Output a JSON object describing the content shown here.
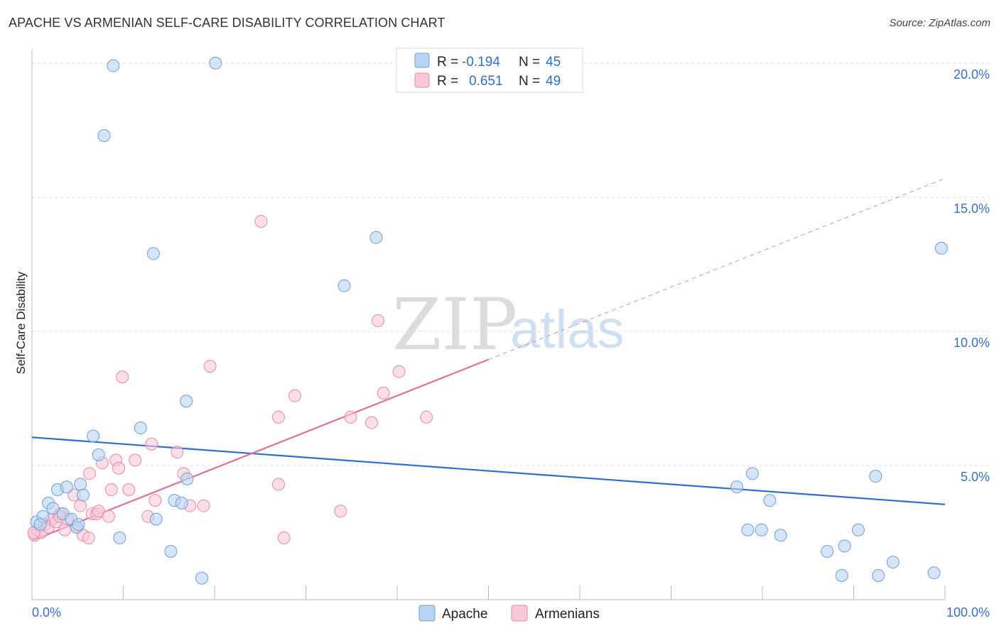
{
  "title": "APACHE VS ARMENIAN SELF-CARE DISABILITY CORRELATION CHART",
  "source": "Source: ZipAtlas.com",
  "watermark": {
    "zip": "ZIP",
    "atlas": "atlas"
  },
  "colors": {
    "apache_fill": "#b9d3f1",
    "apache_stroke": "#6f9fd9",
    "apache_line": "#2e6fc9",
    "armenian_fill": "#f9c8d7",
    "armenian_stroke": "#e98aa8",
    "armenian_line": "#e0709a",
    "grid": "#dcdcdc",
    "tick_label": "#3a6fc4"
  },
  "legend": {
    "rows": [
      {
        "r_label": "R =",
        "r_value": "-0.194",
        "n_label": "N =",
        "n_value": "45"
      },
      {
        "r_label": "R =",
        "r_value": "0.651",
        "n_label": "N =",
        "n_value": "49"
      }
    ]
  },
  "bottom_legend": [
    "Apache",
    "Armenians"
  ],
  "chart_data": {
    "type": "scatter",
    "title": "APACHE VS ARMENIAN SELF-CARE DISABILITY CORRELATION CHART",
    "xlabel": "",
    "ylabel": "Self-Care Disability",
    "xlim": [
      0,
      100
    ],
    "ylim": [
      0,
      20.5
    ],
    "x_tick_labels": [
      "0.0%",
      "100.0%"
    ],
    "y_ticks": [
      5,
      10,
      15,
      20
    ],
    "y_tick_labels": [
      "5.0%",
      "10.0%",
      "15.0%",
      "20.0%"
    ],
    "grid": true,
    "legend_position": "top-center",
    "series": [
      {
        "name": "Apache",
        "r": -0.194,
        "n": 45,
        "trend": {
          "x": [
            0,
            100
          ],
          "y": [
            6.05,
            3.55
          ],
          "dashed_from": null
        },
        "points": [
          [
            0.5,
            2.9
          ],
          [
            1.2,
            3.1
          ],
          [
            1.8,
            3.6
          ],
          [
            2.3,
            3.4
          ],
          [
            2.8,
            4.1
          ],
          [
            3.4,
            3.2
          ],
          [
            3.8,
            4.2
          ],
          [
            4.3,
            3.0
          ],
          [
            4.9,
            2.7
          ],
          [
            5.6,
            3.9
          ],
          [
            5.3,
            4.3
          ],
          [
            6.7,
            6.1
          ],
          [
            7.3,
            5.4
          ],
          [
            7.9,
            17.3
          ],
          [
            8.9,
            19.9
          ],
          [
            9.6,
            2.3
          ],
          [
            11.9,
            6.4
          ],
          [
            13.3,
            12.9
          ],
          [
            13.6,
            3.0
          ],
          [
            15.2,
            1.8
          ],
          [
            15.6,
            3.7
          ],
          [
            16.4,
            3.6
          ],
          [
            16.9,
            7.4
          ],
          [
            17.0,
            4.5
          ],
          [
            18.6,
            0.8
          ],
          [
            20.1,
            20.0
          ],
          [
            34.2,
            11.7
          ],
          [
            37.7,
            13.5
          ],
          [
            77.2,
            4.2
          ],
          [
            78.4,
            2.6
          ],
          [
            78.9,
            4.7
          ],
          [
            79.9,
            2.6
          ],
          [
            80.8,
            3.7
          ],
          [
            82.0,
            2.4
          ],
          [
            87.1,
            1.8
          ],
          [
            88.7,
            0.9
          ],
          [
            89.0,
            2.0
          ],
          [
            90.5,
            2.6
          ],
          [
            92.4,
            4.6
          ],
          [
            92.7,
            0.9
          ],
          [
            94.3,
            1.4
          ],
          [
            98.8,
            1.0
          ],
          [
            99.6,
            13.1
          ],
          [
            0.9,
            2.8
          ],
          [
            5.1,
            2.8
          ]
        ]
      },
      {
        "name": "Armenians",
        "r": 0.651,
        "n": 49,
        "trend": {
          "x": [
            0,
            100
          ],
          "y": [
            2.2,
            15.7
          ],
          "dashed_from": 50
        },
        "points": [
          [
            0.3,
            2.4
          ],
          [
            0.6,
            2.6
          ],
          [
            1.0,
            2.5
          ],
          [
            1.4,
            2.8
          ],
          [
            1.8,
            2.7
          ],
          [
            2.2,
            3.0
          ],
          [
            2.6,
            2.9
          ],
          [
            3.1,
            3.2
          ],
          [
            3.6,
            2.6
          ],
          [
            3.9,
            3.0
          ],
          [
            4.6,
            3.9
          ],
          [
            4.9,
            2.7
          ],
          [
            5.3,
            3.5
          ],
          [
            5.6,
            2.4
          ],
          [
            6.2,
            2.3
          ],
          [
            6.3,
            4.7
          ],
          [
            6.6,
            3.2
          ],
          [
            7.1,
            3.2
          ],
          [
            7.3,
            3.3
          ],
          [
            7.7,
            5.1
          ],
          [
            8.4,
            3.1
          ],
          [
            8.7,
            4.1
          ],
          [
            9.2,
            5.2
          ],
          [
            9.5,
            4.9
          ],
          [
            9.9,
            8.3
          ],
          [
            10.6,
            4.1
          ],
          [
            11.3,
            5.2
          ],
          [
            12.7,
            3.1
          ],
          [
            13.1,
            5.8
          ],
          [
            13.5,
            3.7
          ],
          [
            15.9,
            5.5
          ],
          [
            16.6,
            4.7
          ],
          [
            17.3,
            3.5
          ],
          [
            18.8,
            3.5
          ],
          [
            19.5,
            8.7
          ],
          [
            25.1,
            14.1
          ],
          [
            27.0,
            6.8
          ],
          [
            27.0,
            4.3
          ],
          [
            27.6,
            2.3
          ],
          [
            28.8,
            7.6
          ],
          [
            33.8,
            3.3
          ],
          [
            34.9,
            6.8
          ],
          [
            37.2,
            6.6
          ],
          [
            37.9,
            10.4
          ],
          [
            38.5,
            7.7
          ],
          [
            40.2,
            8.5
          ],
          [
            43.2,
            6.8
          ],
          [
            0.2,
            2.5
          ],
          [
            3.0,
            3.1
          ]
        ]
      }
    ]
  }
}
